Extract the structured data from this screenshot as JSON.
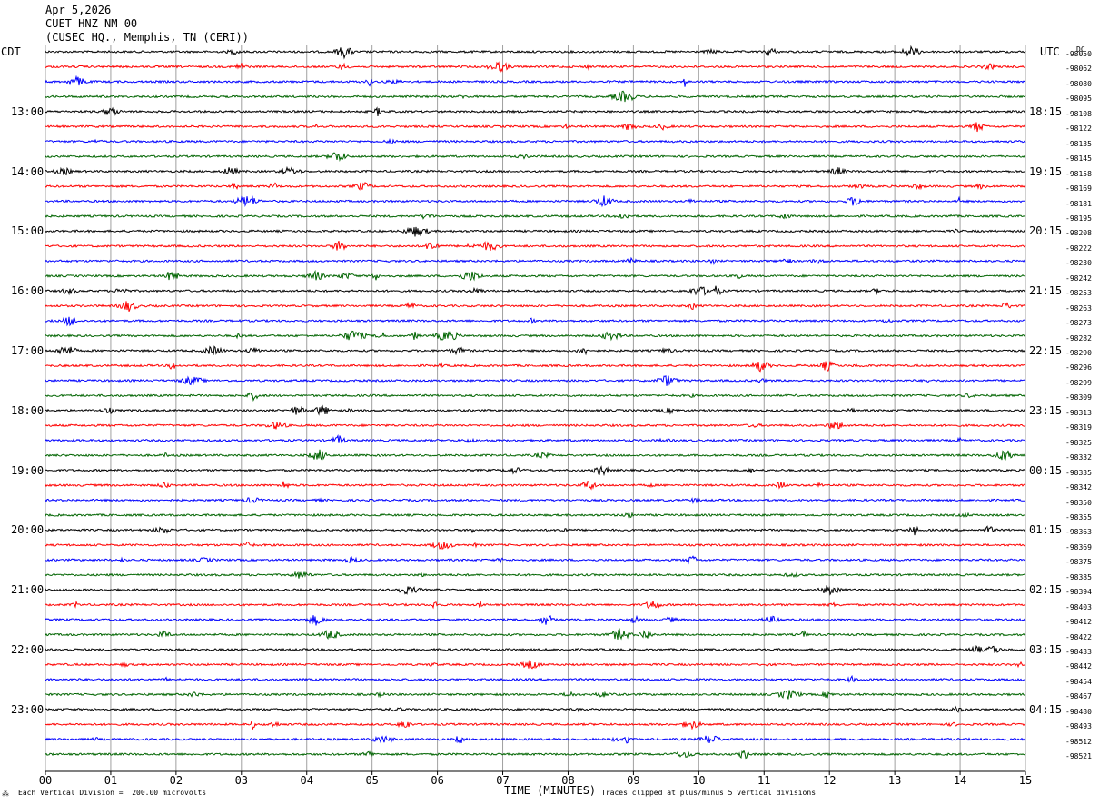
{
  "header": {
    "date": "Apr 5,2026",
    "station": "CUET HNZ NM 00",
    "location": "(CUSEC HQ., Memphis, TN (CERI))"
  },
  "axis_labels": {
    "left_zone": "CDT",
    "right_zone": "UTC",
    "right_units_top": "DC",
    "x_title": "TIME (MINUTES)"
  },
  "footer": {
    "scale_note": "Each Vertical Division =  200.00 microvolts",
    "clip_note": "Traces clipped at plus/minus 5 vertical divisions",
    "logo_mark": "⁂"
  },
  "colors": {
    "trace_cycle": [
      "#000000",
      "#ff0000",
      "#0000ff",
      "#006400"
    ],
    "grid": "#a0a0a0"
  },
  "chart_data": {
    "type": "line",
    "title": "",
    "xlabel": "TIME (MINUTES)",
    "ylabel": "",
    "x_range": [
      0,
      15
    ],
    "x_ticks": [
      "00",
      "01",
      "02",
      "03",
      "04",
      "05",
      "06",
      "07",
      "08",
      "09",
      "10",
      "11",
      "12",
      "13",
      "14",
      "15"
    ],
    "hour_labels_left": [
      "13:00",
      "14:00",
      "15:00",
      "16:00",
      "17:00",
      "18:00",
      "19:00",
      "20:00",
      "21:00",
      "22:00",
      "23:00"
    ],
    "hour_labels_right": [
      "18:15",
      "19:15",
      "20:15",
      "21:15",
      "22:15",
      "23:15",
      "00:15",
      "01:15",
      "02:15",
      "03:15",
      "04:15"
    ],
    "hour_label_first_trace": [
      4,
      8,
      12,
      16,
      20,
      24,
      28,
      32,
      36,
      40,
      44
    ],
    "trace_dc_offsets": [
      "-98050",
      "-98062",
      "-98080",
      "-98095",
      "-98108",
      "-98122",
      "-98135",
      "-98145",
      "-98158",
      "-98169",
      "-98181",
      "-98195",
      "-98208",
      "-98222",
      "-98230",
      "-98242",
      "-98253",
      "-98263",
      "-98273",
      "-98282",
      "-98290",
      "-98296",
      "-98299",
      "-98309",
      "-98313",
      "-98319",
      "-98325",
      "-98332",
      "-98335",
      "-98342",
      "-98350",
      "-98355",
      "-98363",
      "-98369",
      "-98375",
      "-98385",
      "-98394",
      "-98403",
      "-98412",
      "-98422",
      "-98433",
      "-98442",
      "-98454",
      "-98467",
      "-98480",
      "-98493",
      "-98512",
      "-98521"
    ],
    "trace_count": 48,
    "minutes_per_trace": 15,
    "grid": true
  }
}
